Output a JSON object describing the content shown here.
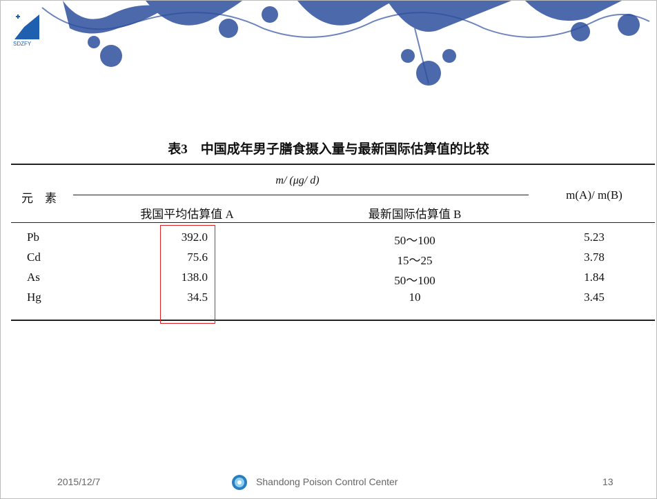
{
  "logo": "SDZFY",
  "table": {
    "title": "表3　中国成年男子膳食摄入量与最新国际估算值的比较",
    "header": {
      "element": "元　素",
      "unit": "m/ (μg/ d)",
      "col_a": "我国平均估算值 A",
      "col_b": "最新国际估算值 B",
      "ratio": "m(A)/ m(B)"
    },
    "rows": [
      [
        "Pb",
        "392.0",
        "50～100",
        "5.23"
      ],
      [
        "Cd",
        "75.6",
        "15～25",
        "3.78"
      ],
      [
        "As",
        "138.0",
        "50～100",
        "1.84"
      ],
      [
        "Hg",
        "34.5",
        "10",
        "3.45"
      ]
    ]
  },
  "footer": {
    "date": "2015/12/7",
    "center": "Shandong Poison Control Center",
    "page": "13"
  }
}
